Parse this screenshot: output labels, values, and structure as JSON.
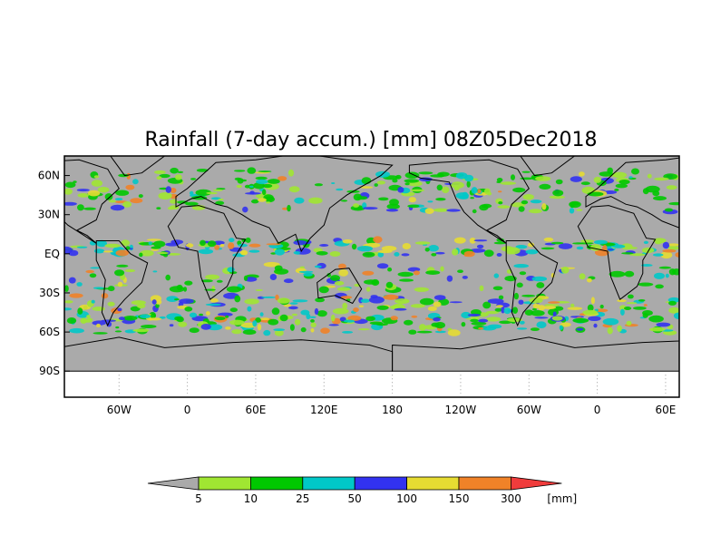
{
  "chart_data": {
    "type": "heatmap",
    "title": "Rainfall (7-day accum.) [mm] 08Z05Dec2018",
    "xlabel": "",
    "ylabel": "",
    "x_tick_labels": [
      "60W",
      "0",
      "60E",
      "120E",
      "180",
      "120W",
      "60W",
      "0",
      "60E"
    ],
    "y_tick_labels": [
      "60N",
      "30N",
      "EQ",
      "30S",
      "60S",
      "90S"
    ],
    "y_ticks_deg": [
      60,
      30,
      0,
      -30,
      -60,
      -90
    ],
    "x_ticks_deg": [
      -60,
      0,
      60,
      120,
      180,
      240,
      300,
      360,
      420
    ],
    "lon_range": [
      -108,
      432
    ],
    "lat_range": [
      -110,
      75
    ],
    "grid": false,
    "no_data_color": "#aaaaaa",
    "colorbar": {
      "unit_label": "[mm]",
      "levels": [
        "5",
        "10",
        "25",
        "50",
        "100",
        "150",
        "300"
      ],
      "colors": [
        "#aaaaaa",
        "#a0e632",
        "#00c800",
        "#00c8c8",
        "#3232f0",
        "#e6dc32",
        "#f08228",
        "#f03c3c"
      ]
    }
  }
}
